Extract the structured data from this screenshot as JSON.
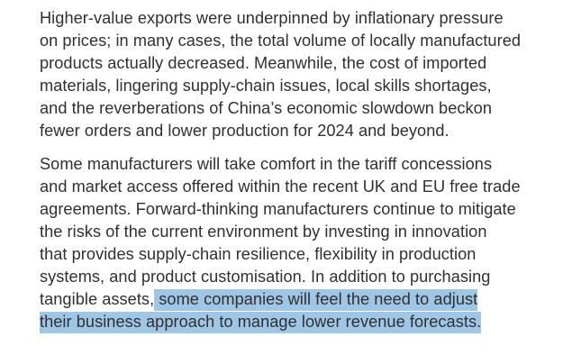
{
  "document": {
    "paragraphs": [
      {
        "lines": [
          "Higher-value exports were underpinned by inflationary pressure",
          "on prices; in many cases, the total volume of locally manufactured",
          "products actually decreased. Meanwhile, the cost of imported",
          "materials, lingering supply-chain issues, local skills shortages,",
          "and the reverberations of China’s economic slowdown beckon",
          "fewer orders and lower production for 2024 and beyond."
        ]
      },
      {
        "lines": [
          "Some manufacturers will take comfort in the tariff concessions",
          "and market access offered within the recent UK and EU free trade",
          "agreements. Forward-thinking manufacturers continue to mitigate",
          "the risks of the current environment by investing in innovation",
          "that provides supply-chain resilience, flexibility in production",
          "systems, and product customisation. In addition to purchasing"
        ],
        "line7_prefix": "tangible assets,",
        "highlighted_lines": [
          " some companies will feel the need to adjust",
          "their business approach to manage lower revenue forecasts."
        ]
      }
    ],
    "highlight_color": "#9fc6e4",
    "text_color": "#2f3033"
  }
}
